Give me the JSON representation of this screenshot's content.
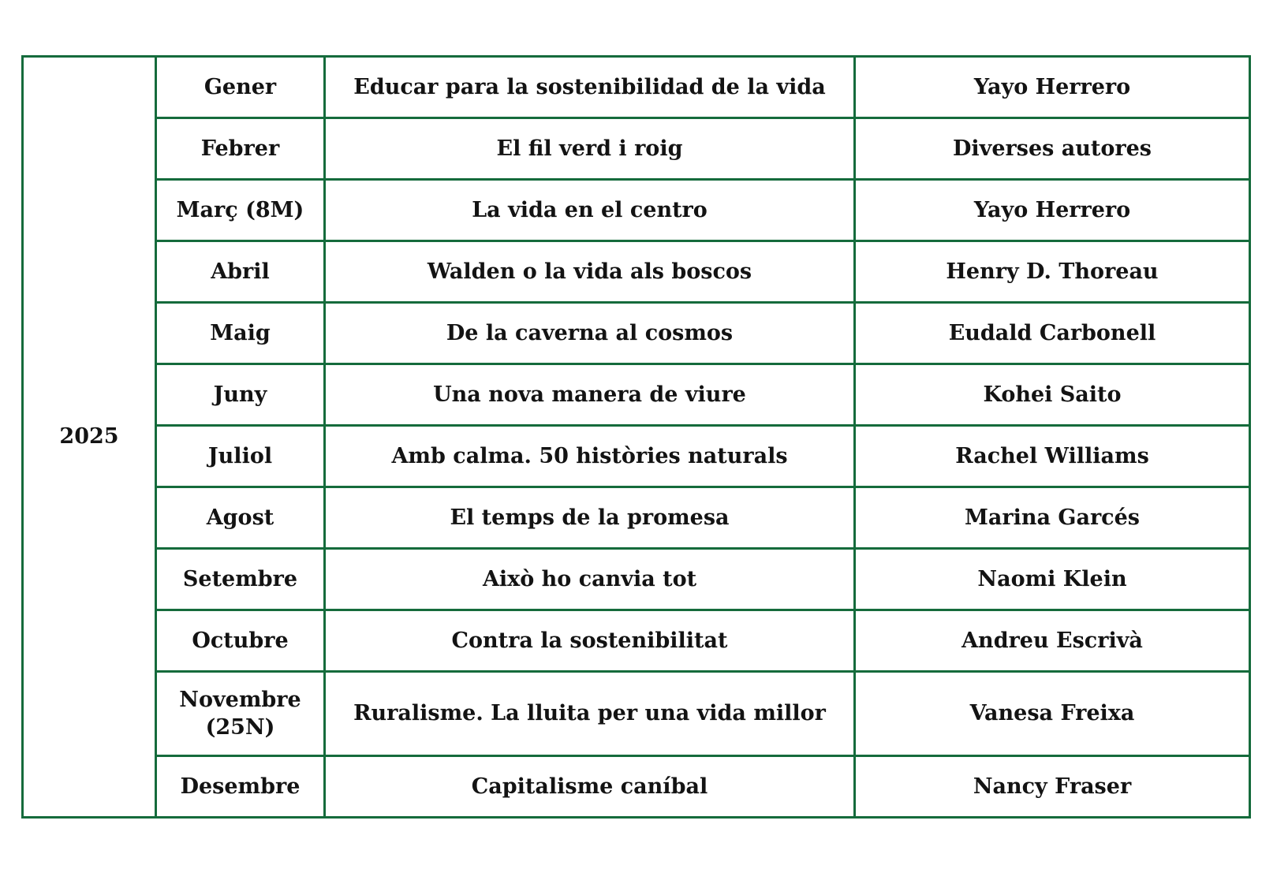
{
  "table": {
    "year": "2025",
    "border_color": "#156b3c",
    "text_color": "#131313",
    "columns": [
      "year",
      "month",
      "book_title",
      "author"
    ],
    "rows": [
      {
        "month": "Gener",
        "title": "Educar para la sostenibilidad de la vida",
        "author": "Yayo Herrero"
      },
      {
        "month": "Febrer",
        "title": "El fil verd i roig",
        "author": "Diverses autores"
      },
      {
        "month": "Març (8M)",
        "title": "La vida en el centro",
        "author": "Yayo Herrero"
      },
      {
        "month": "Abril",
        "title": "Walden o la vida als boscos",
        "author": "Henry D. Thoreau"
      },
      {
        "month": "Maig",
        "title": "De la caverna al cosmos",
        "author": "Eudald Carbonell"
      },
      {
        "month": "Juny",
        "title": "Una nova manera de viure",
        "author": "Kohei Saito"
      },
      {
        "month": "Juliol",
        "title": "Amb calma. 50 històries naturals",
        "author": "Rachel Williams"
      },
      {
        "month": "Agost",
        "title": "El temps de la promesa",
        "author": "Marina Garcés"
      },
      {
        "month": "Setembre",
        "title": "Això ho canvia tot",
        "author": "Naomi Klein"
      },
      {
        "month": "Octubre",
        "title": "Contra la sostenibilitat",
        "author": "Andreu Escrivà"
      },
      {
        "month": "Novembre (25N)",
        "title": "Ruralisme. La lluita per una vida millor",
        "author": "Vanesa Freixa"
      },
      {
        "month": "Desembre",
        "title": "Capitalisme caníbal",
        "author": "Nancy Fraser"
      }
    ]
  }
}
